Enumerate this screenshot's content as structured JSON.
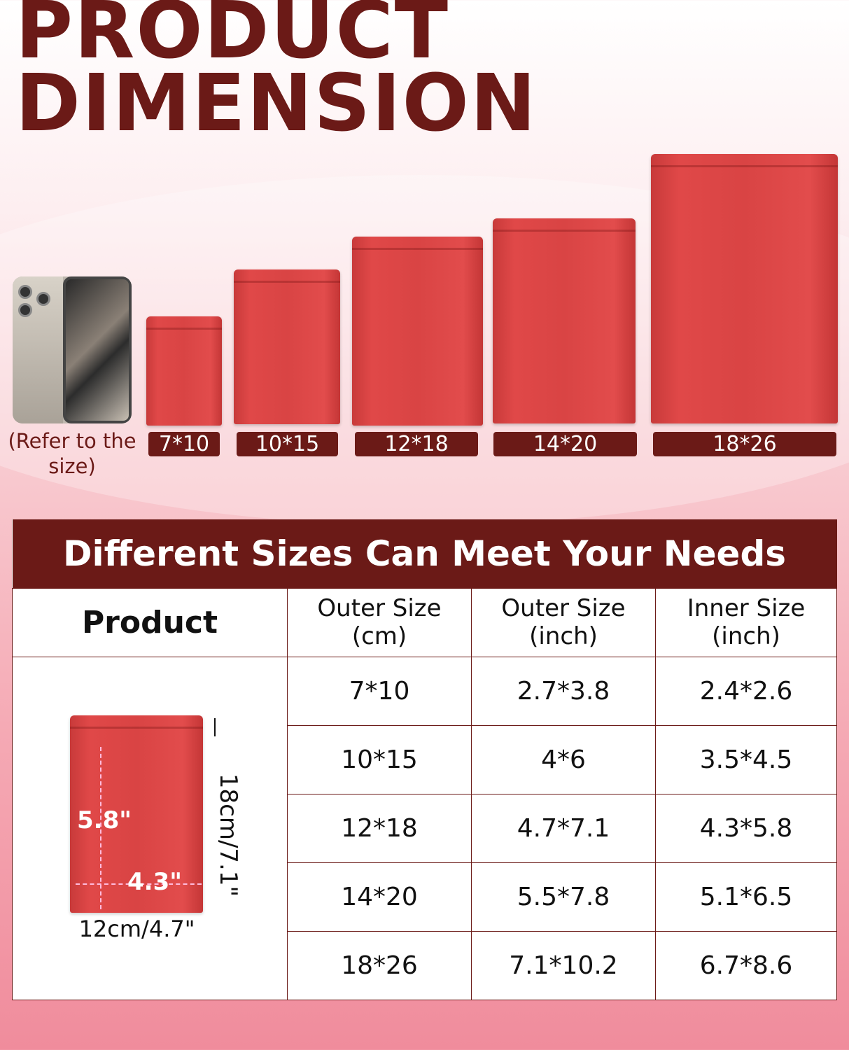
{
  "title": {
    "line1": "PRODUCT",
    "line2": "DIMENSION"
  },
  "reference": {
    "label": "(Refer to the size)"
  },
  "bags": [
    {
      "label": "7*10"
    },
    {
      "label": "10*15"
    },
    {
      "label": "12*18"
    },
    {
      "label": "14*20"
    },
    {
      "label": "18*26"
    }
  ],
  "colors": {
    "brand": "#6b1a17",
    "bag": "#d94444"
  },
  "table": {
    "heading": "Different Sizes Can Meet Your Needs",
    "columns": [
      "Product",
      "Outer Size (cm)",
      "Outer Size (inch)",
      "Inner Size (inch)"
    ],
    "rows": [
      [
        "7*10",
        "2.7*3.8",
        "2.4*2.6"
      ],
      [
        "10*15",
        "4*6",
        "3.5*4.5"
      ],
      [
        "12*18",
        "4.7*7.1",
        "4.3*5.8"
      ],
      [
        "14*20",
        "5.5*7.8",
        "5.1*6.5"
      ],
      [
        "18*26",
        "7.1*10.2",
        "6.7*8.6"
      ]
    ]
  },
  "diagram": {
    "inner_height": "5.8\"",
    "inner_width": "4.3\"",
    "outer_height": "18cm/7.1\"",
    "outer_width": "12cm/4.7\""
  }
}
